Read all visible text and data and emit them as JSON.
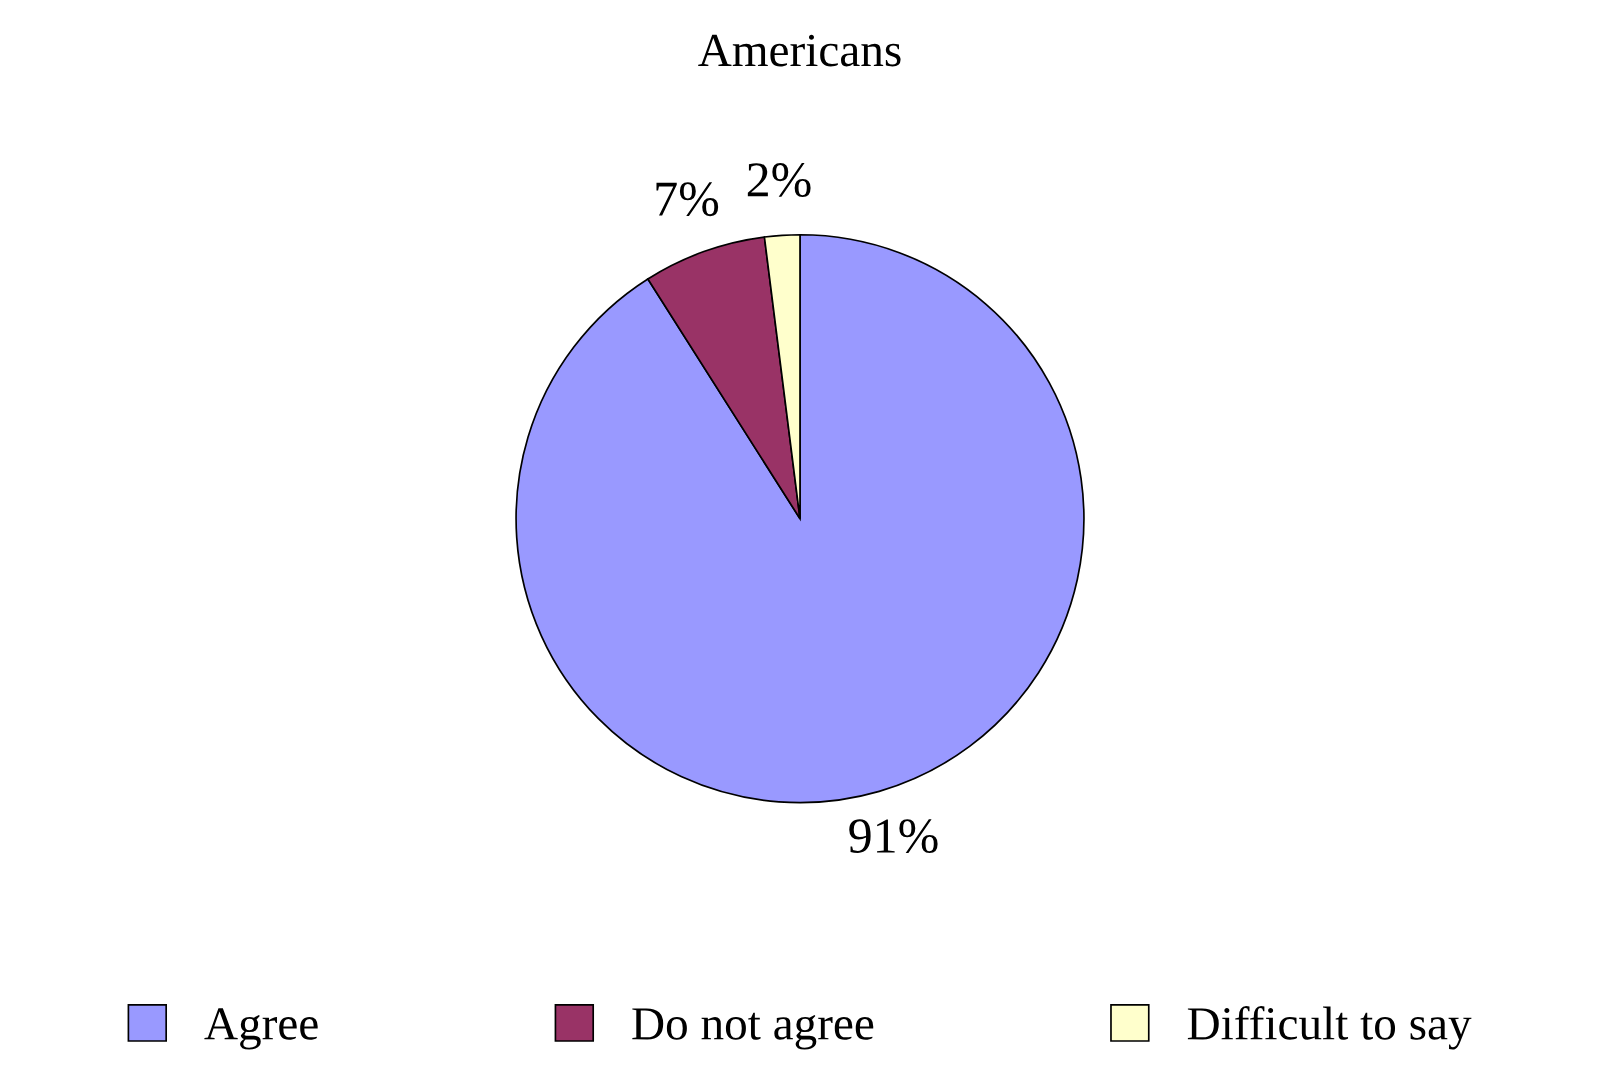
{
  "chart_data": {
    "type": "pie",
    "title": "Americans",
    "categories": [
      "Agree",
      "Do not agree",
      "Difficult to say"
    ],
    "values": [
      91,
      7,
      2
    ],
    "colors": [
      "#9999ff",
      "#993366",
      "#ffffcc"
    ],
    "value_labels": [
      "91%",
      "7%",
      "2%"
    ],
    "legend": "bottom"
  }
}
